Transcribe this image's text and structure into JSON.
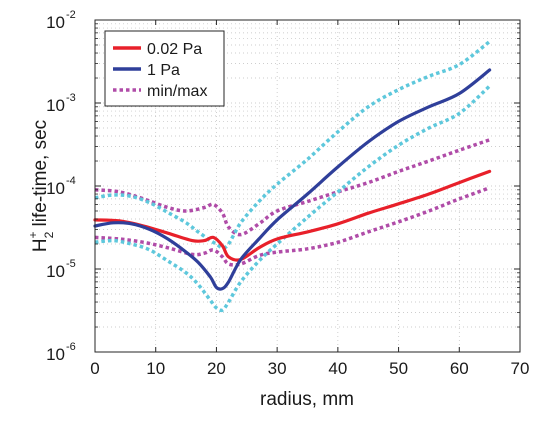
{
  "chart_data": {
    "type": "line",
    "xlabel": "radius, mm",
    "ylabel": {
      "base": "H",
      "superscript": "+",
      "subscript": "2",
      "rest": " life-time, sec"
    },
    "xlim": [
      0,
      70
    ],
    "ylim": [
      1e-06,
      0.01
    ],
    "yscale": "log",
    "grid": "minor-dotted",
    "legend_position": "top-left",
    "x_ticks": [
      "0",
      "10",
      "20",
      "30",
      "40",
      "50",
      "60",
      "70"
    ],
    "y_ticks": [
      {
        "base": "10",
        "exp": "-6"
      },
      {
        "base": "10",
        "exp": "-5"
      },
      {
        "base": "10",
        "exp": "-4"
      },
      {
        "base": "10",
        "exp": "-3"
      },
      {
        "base": "10",
        "exp": "-2"
      }
    ],
    "series": [
      {
        "name": "0.02 Pa",
        "color": "#e8202a",
        "style": "solid",
        "legend": true,
        "x": [
          0,
          4,
          8,
          12,
          16,
          18,
          19.5,
          21,
          22,
          24,
          27,
          30,
          35,
          40,
          45,
          50,
          55,
          60,
          65
        ],
        "y": [
          3.9e-05,
          3.8e-05,
          3.3e-05,
          2.7e-05,
          2.2e-05,
          2.2e-05,
          2.4e-05,
          1.9e-05,
          1.4e-05,
          1.3e-05,
          1.8e-05,
          2.3e-05,
          2.8e-05,
          3.5e-05,
          4.7e-05,
          6.1e-05,
          8e-05,
          0.00011,
          0.00015
        ]
      },
      {
        "name": "1 Pa",
        "color": "#2f3f9a",
        "style": "solid",
        "legend": true,
        "x": [
          0,
          3,
          6,
          9,
          12,
          15,
          17,
          19,
          20,
          21,
          22,
          24,
          27,
          30,
          35,
          40,
          45,
          50,
          55,
          60,
          65
        ],
        "y": [
          3.3e-05,
          3.6e-05,
          3.5e-05,
          3e-05,
          2.3e-05,
          1.6e-05,
          1.2e-05,
          8e-06,
          6e-06,
          5.8e-06,
          7e-06,
          1.3e-05,
          2.3e-05,
          3.9e-05,
          8e-05,
          0.00017,
          0.00034,
          0.0006,
          0.0009,
          0.0013,
          0.0025
        ]
      },
      {
        "name": "min/max",
        "color": "#b04ca8",
        "style": "dotted",
        "legend": true,
        "x": [
          0,
          4,
          8,
          12,
          15,
          18,
          19.5,
          21,
          22,
          24,
          27,
          30,
          35,
          40,
          45,
          50,
          55,
          60,
          65
        ],
        "y": [
          9e-05,
          8.5e-05,
          7e-05,
          5.5e-05,
          5e-05,
          5.5e-05,
          6e-05,
          4.7e-05,
          3.2e-05,
          2.6e-05,
          3.5e-05,
          5e-05,
          6.5e-05,
          8.5e-05,
          0.00011,
          0.00015,
          0.0002,
          0.00027,
          0.00036
        ]
      },
      {
        "name": "",
        "color": "#b04ca8",
        "style": "dotted",
        "legend": false,
        "x": [
          0,
          4,
          8,
          12,
          16,
          18,
          19.5,
          21,
          22,
          24,
          27,
          30,
          35,
          40,
          45,
          50,
          55,
          60,
          65
        ],
        "y": [
          2.4e-05,
          2.3e-05,
          2.1e-05,
          1.8e-05,
          1.5e-05,
          1.55e-05,
          1.7e-05,
          1.4e-05,
          1.15e-05,
          1.15e-05,
          1.45e-05,
          1.6e-05,
          1.75e-05,
          2.1e-05,
          2.8e-05,
          3.7e-05,
          5e-05,
          7e-05,
          9.5e-05
        ]
      },
      {
        "name": "",
        "color": "#5ec8dc",
        "style": "dotted",
        "legend": false,
        "x": [
          0,
          3,
          6,
          9,
          12,
          15,
          17,
          19,
          20,
          21,
          22,
          24,
          27,
          30,
          35,
          40,
          45,
          50,
          55,
          60,
          65
        ],
        "y": [
          7.2e-05,
          7.8e-05,
          7.5e-05,
          6.3e-05,
          4.8e-05,
          3.6e-05,
          2.8e-05,
          2.2e-05,
          2e-05,
          1.8e-05,
          2e-05,
          3.6e-05,
          6.5e-05,
          0.000105,
          0.00021,
          0.00045,
          0.0009,
          0.00145,
          0.0021,
          0.0029,
          0.0055
        ]
      },
      {
        "name": "",
        "color": "#5ec8dc",
        "style": "dotted",
        "legend": false,
        "x": [
          0,
          3,
          6,
          9,
          12,
          15,
          17,
          19,
          20,
          21,
          22,
          24,
          27,
          30,
          35,
          40,
          45,
          50,
          55,
          60,
          65
        ],
        "y": [
          2.1e-05,
          2.2e-05,
          2e-05,
          1.7e-05,
          1.25e-05,
          9e-06,
          6.5e-06,
          4.2e-06,
          3.4e-06,
          3.2e-06,
          4e-06,
          7e-06,
          1.25e-05,
          2e-05,
          4.2e-05,
          8.5e-05,
          0.00017,
          0.00031,
          0.0005,
          0.00075,
          0.0016
        ]
      }
    ]
  }
}
